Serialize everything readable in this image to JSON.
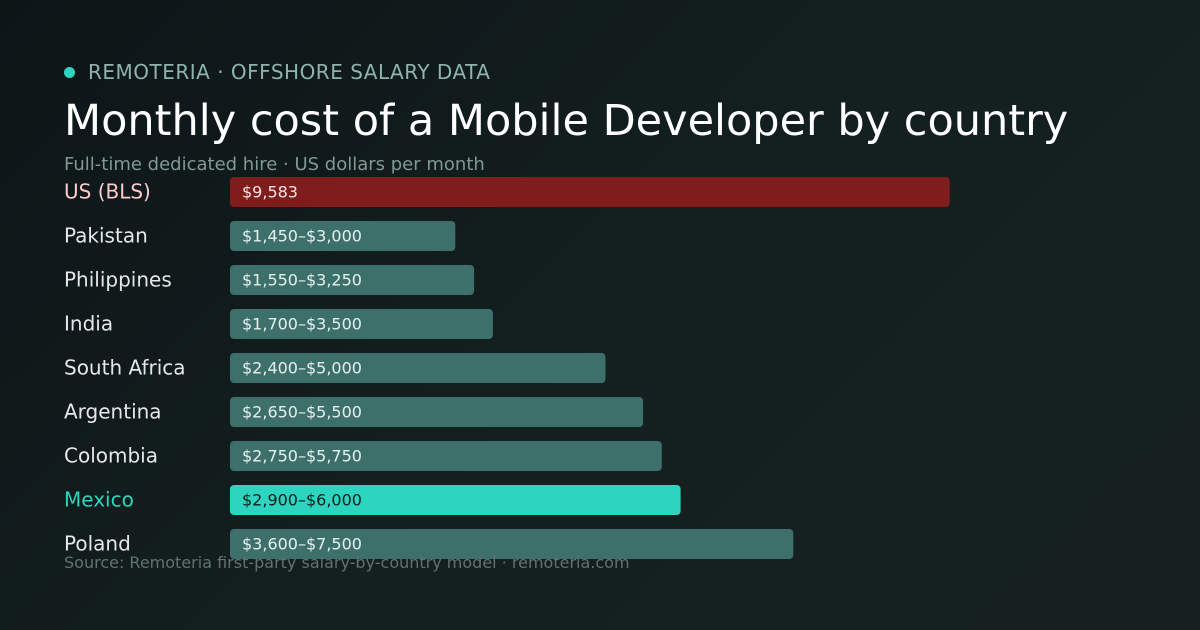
{
  "header": {
    "brand": "REMOTERIA · OFFSHORE SALARY DATA",
    "title": "Monthly cost of a Mobile Developer by country",
    "subtitle": "Full-time dedicated hire · US dollars per month"
  },
  "footer": {
    "source": "Source: Remoteria first-party salary-by-country model · remoteria.com"
  },
  "colors": {
    "accent": "#2dd4bf",
    "us_bar": "#7f1d1d",
    "us_label": "#fecaca",
    "default_bar": "#3d706b",
    "default_label": "#e5e7eb",
    "highlight_label_on_bar": "#0b1f1d"
  },
  "chart_data": {
    "type": "bar",
    "orientation": "horizontal",
    "xlim": [
      0,
      12000
    ],
    "categories": [
      "US (BLS)",
      "Pakistan",
      "Philippines",
      "India",
      "South Africa",
      "Argentina",
      "Colombia",
      "Mexico",
      "Poland"
    ],
    "values": [
      9583,
      3000,
      3250,
      3500,
      5000,
      5500,
      5750,
      6000,
      7500
    ],
    "ranges": [
      null,
      [
        1450,
        3000
      ],
      [
        1550,
        3250
      ],
      [
        1700,
        3500
      ],
      [
        2400,
        5000
      ],
      [
        2650,
        5500
      ],
      [
        2750,
        5750
      ],
      [
        2900,
        6000
      ],
      [
        3600,
        7500
      ]
    ],
    "value_labels": [
      "$9,583",
      "$1,450–$3,000",
      "$1,550–$3,250",
      "$1,700–$3,500",
      "$2,400–$5,000",
      "$2,650–$5,500",
      "$2,750–$5,750",
      "$2,900–$6,000",
      "$3,600–$7,500"
    ],
    "highlight": {
      "reference": "US (BLS)",
      "focus": "Mexico"
    },
    "grid": false,
    "legend": "none"
  }
}
